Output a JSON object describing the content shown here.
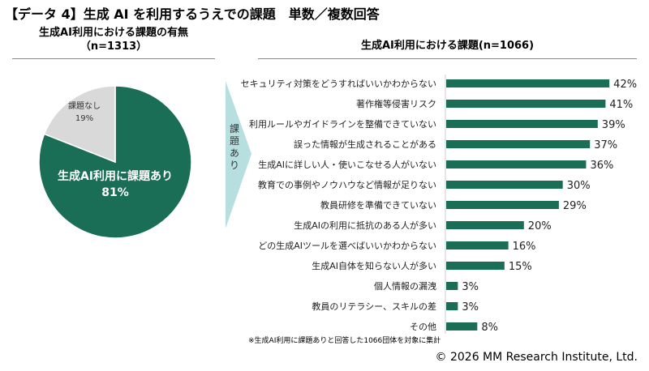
{
  "title": "【データ 4】生成 AI を利用するうえでの課題　単数／複数回答",
  "copyright": "© 2026 MM Research Institute, Ltd.",
  "colors": {
    "bar": "#1a6e55",
    "pie_main": "#1a6e55",
    "pie_other": "#d9d9d9",
    "arrow": "#b7dfe0"
  },
  "arrow_label": "課題あり",
  "note": "※生成AI利用に課題ありと回答した1066団体を対象に集計",
  "chart_data": [
    {
      "type": "pie",
      "title": "生成AI利用における課題の有無",
      "subtitle": "（n=1313）",
      "slices": [
        {
          "label": "生成AI利用に課題あり",
          "value": 81,
          "value_label": "81%"
        },
        {
          "label": "課題なし",
          "value": 19,
          "value_label": "19%"
        }
      ]
    },
    {
      "type": "bar",
      "orientation": "horizontal",
      "title": "生成AI利用における課題(n=1066)",
      "categories": [
        "セキュリティ対策をどうすればいいかわからない",
        "著作権等侵害リスク",
        "利用ルールやガイドラインを整備できていない",
        "誤った情報が生成されることがある",
        "生成AIに詳しい人・使いこなせる人がいない",
        "教育での事例やノウハウなど情報が足りない",
        "教員研修を準備できていない",
        "生成AIの利用に抵抗のある人が多い",
        "どの生成AIツールを選べばいいかわからない",
        "生成AI自体を知らない人が多い",
        "個人情報の漏洩",
        "教員のリテラシー、スキルの差",
        "その他"
      ],
      "values": [
        42,
        41,
        39,
        37,
        36,
        30,
        29,
        20,
        16,
        15,
        3,
        3,
        8
      ],
      "unit": "%"
    }
  ]
}
